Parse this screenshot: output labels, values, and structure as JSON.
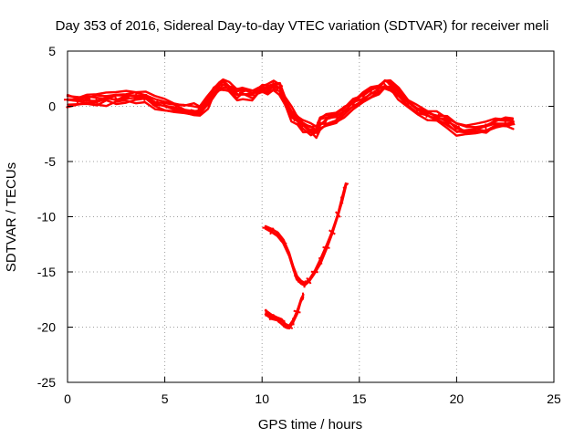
{
  "chart_data": {
    "type": "scatter",
    "title": "Day 353 of 2016, Sidereal Day-to-day VTEC variation (SDTVAR) for receiver meli",
    "xlabel": "GPS time / hours",
    "ylabel": "SDTVAR / TECUs",
    "xlim": [
      0,
      25
    ],
    "ylim": [
      -25,
      5
    ],
    "xticks": [
      0,
      5,
      10,
      15,
      20,
      25
    ],
    "yticks": [
      -25,
      -20,
      -15,
      -10,
      -5,
      0,
      5
    ],
    "grid": true,
    "grid_style": "dotted",
    "legend": "none",
    "series": [
      {
        "name": "main",
        "color": "#ff0000",
        "band": 0.9,
        "points": [
          [
            0.0,
            0.6
          ],
          [
            0.5,
            0.5
          ],
          [
            1.0,
            0.6
          ],
          [
            1.5,
            0.5
          ],
          [
            2.0,
            0.7
          ],
          [
            2.5,
            0.7
          ],
          [
            3.0,
            0.8
          ],
          [
            3.5,
            0.9
          ],
          [
            4.0,
            0.8
          ],
          [
            4.5,
            0.3
          ],
          [
            5.0,
            0.1
          ],
          [
            5.5,
            -0.1
          ],
          [
            6.0,
            -0.3
          ],
          [
            6.5,
            -0.4
          ],
          [
            6.8,
            -0.5
          ],
          [
            7.2,
            0.3
          ],
          [
            7.5,
            1.2
          ],
          [
            7.8,
            1.8
          ],
          [
            8.0,
            1.9
          ],
          [
            8.3,
            1.6
          ],
          [
            8.7,
            1.2
          ],
          [
            9.0,
            1.3
          ],
          [
            9.5,
            1.1
          ],
          [
            9.8,
            1.4
          ],
          [
            10.0,
            1.6
          ],
          [
            10.3,
            1.5
          ],
          [
            10.6,
            1.9
          ],
          [
            10.9,
            1.7
          ],
          [
            11.2,
            0.5
          ],
          [
            11.5,
            -0.7
          ],
          [
            11.8,
            -1.2
          ],
          [
            12.1,
            -1.8
          ],
          [
            12.5,
            -2.1
          ],
          [
            12.8,
            -2.2
          ],
          [
            13.0,
            -1.5
          ],
          [
            13.3,
            -1.3
          ],
          [
            13.8,
            -1.0
          ],
          [
            14.2,
            -0.4
          ],
          [
            14.7,
            0.2
          ],
          [
            15.2,
            0.8
          ],
          [
            15.6,
            1.3
          ],
          [
            16.0,
            1.6
          ],
          [
            16.3,
            2.0
          ],
          [
            16.6,
            1.9
          ],
          [
            17.0,
            1.2
          ],
          [
            17.5,
            0.3
          ],
          [
            18.0,
            -0.4
          ],
          [
            18.5,
            -0.7
          ],
          [
            19.0,
            -1.0
          ],
          [
            19.5,
            -1.4
          ],
          [
            20.0,
            -2.0
          ],
          [
            20.5,
            -2.2
          ],
          [
            21.0,
            -2.1
          ],
          [
            21.5,
            -1.9
          ],
          [
            22.0,
            -1.6
          ],
          [
            22.5,
            -1.5
          ],
          [
            22.9,
            -1.4
          ]
        ]
      },
      {
        "name": "arc-upper",
        "color": "#ff0000",
        "band": 0.3,
        "points": [
          [
            10.2,
            -11.0
          ],
          [
            10.5,
            -11.3
          ],
          [
            10.8,
            -11.6
          ],
          [
            11.1,
            -12.3
          ],
          [
            11.4,
            -13.4
          ],
          [
            11.6,
            -14.6
          ],
          [
            11.8,
            -15.5
          ],
          [
            12.0,
            -16.0
          ],
          [
            12.2,
            -16.1
          ],
          [
            12.4,
            -15.8
          ],
          [
            12.7,
            -15.0
          ],
          [
            13.0,
            -14.0
          ],
          [
            13.3,
            -12.8
          ],
          [
            13.6,
            -11.4
          ],
          [
            13.9,
            -9.8
          ],
          [
            14.1,
            -8.5
          ],
          [
            14.3,
            -7.2
          ]
        ]
      },
      {
        "name": "arc-lower",
        "color": "#ff0000",
        "band": 0.3,
        "points": [
          [
            10.2,
            -18.7
          ],
          [
            10.5,
            -19.1
          ],
          [
            10.8,
            -19.3
          ],
          [
            11.0,
            -19.5
          ],
          [
            11.2,
            -19.9
          ],
          [
            11.4,
            -20.0
          ],
          [
            11.6,
            -19.5
          ],
          [
            11.8,
            -18.6
          ],
          [
            12.0,
            -17.6
          ],
          [
            12.1,
            -17.2
          ]
        ]
      }
    ]
  }
}
